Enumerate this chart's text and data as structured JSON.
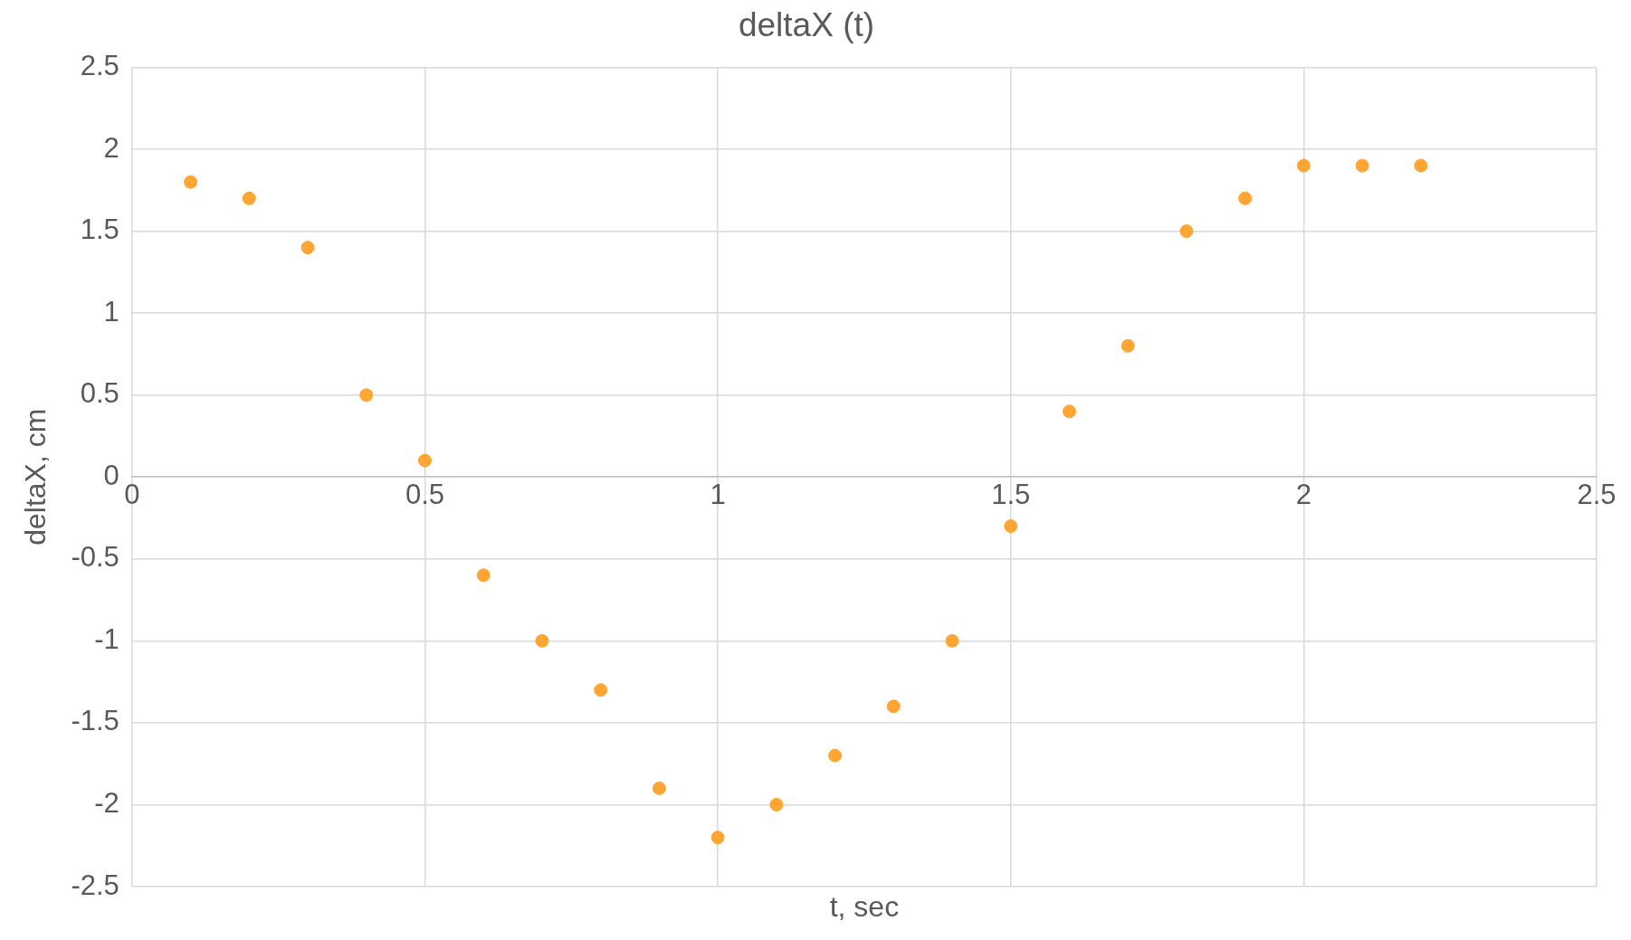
{
  "chart_data": {
    "type": "scatter",
    "title": "deltaX (t)",
    "xlabel": "t, sec",
    "ylabel": "deltaX, cm",
    "x": [
      0.1,
      0.2,
      0.3,
      0.4,
      0.5,
      0.6,
      0.7,
      0.8,
      0.9,
      1.0,
      1.1,
      1.2,
      1.3,
      1.4,
      1.5,
      1.6,
      1.7,
      1.8,
      1.9,
      2.0,
      2.1,
      2.2
    ],
    "series": [
      {
        "color": "#ffa533",
        "values": [
          1.8,
          1.7,
          1.4,
          0.5,
          0.1,
          -0.6,
          -1.0,
          -1.3,
          -1.9,
          -2.2,
          -2.0,
          -1.7,
          -1.4,
          -1.0,
          -0.3,
          0.4,
          0.8,
          1.5,
          1.7,
          1.9,
          1.9,
          1.9
        ]
      }
    ],
    "xlim": [
      0,
      2.5
    ],
    "xticks": [
      0,
      0.5,
      1,
      1.5,
      2,
      2.5
    ],
    "ylim": [
      -2.5,
      2.5
    ],
    "yticks": [
      -2.5,
      -2,
      -1.5,
      -1,
      -0.5,
      0,
      0.5,
      1,
      1.5,
      2,
      2.5
    ],
    "grid": true,
    "legend": false,
    "marker": "circle"
  }
}
